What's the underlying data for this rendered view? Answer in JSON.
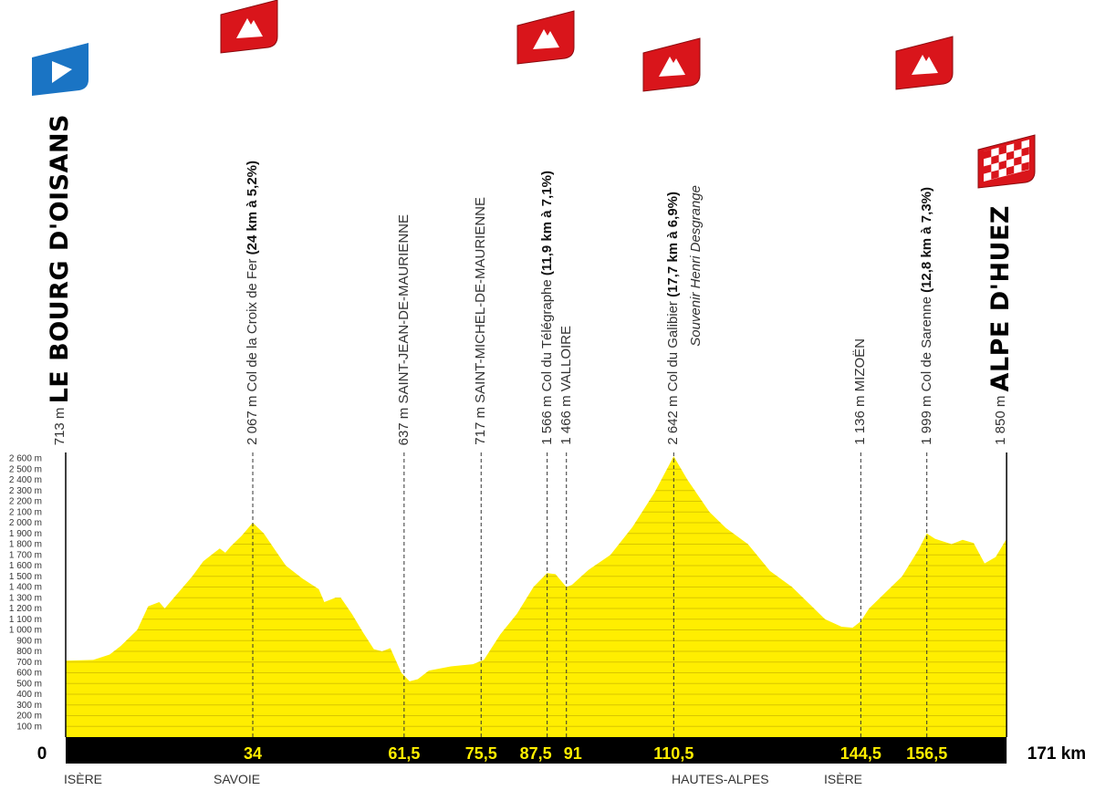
{
  "colors": {
    "profile_fill": "#ffee00",
    "profile_stripe": "#d9c600",
    "axis_bar": "#000000",
    "km_label": "#ffee00",
    "climb_flag": "#d9151b",
    "start_flag": "#1a74c4"
  },
  "waypoints": [
    {
      "km": 0,
      "elevation": "713 m",
      "name": "LE BOURG D'OISANS",
      "flag": "start-flag",
      "style": "town"
    },
    {
      "km": 34,
      "km_label": "34",
      "elevation": "2 067 m",
      "name": "Col de la Croix de Fer",
      "detail": "(24 km à 5,2%)",
      "flag": "mountain-flag",
      "style": "climb"
    },
    {
      "km": 61.5,
      "km_label": "61,5",
      "elevation": "637 m",
      "name": "SAINT-JEAN-DE-MAURIENNE",
      "style": "place"
    },
    {
      "km": 75.5,
      "km_label": "75,5",
      "elevation": "717 m",
      "name": "SAINT-MICHEL-DE-MAURIENNE",
      "style": "place"
    },
    {
      "km": 87.5,
      "km_label": "87,5",
      "elevation": "1 566 m",
      "name": "Col du Télégraphe",
      "detail": "(11,9 km à 7,1%)",
      "flag": "mountain-flag",
      "style": "climb"
    },
    {
      "km": 91,
      "km_label": "91",
      "elevation": "1 466 m",
      "name": "VALLOIRE",
      "style": "place"
    },
    {
      "km": 110.5,
      "km_label": "110,5",
      "elevation": "2 642 m",
      "name": "Col du Galibier",
      "detail": "(17,7 km à 6,9%)",
      "subtitle": "Souvenir Henri Desgrange",
      "flag": "mountain-flag",
      "style": "climb"
    },
    {
      "km": 144.5,
      "km_label": "144,5",
      "elevation": "1 136 m",
      "name": "MIZOËN",
      "style": "place"
    },
    {
      "km": 156.5,
      "km_label": "156,5",
      "elevation": "1 999 m",
      "name": "Col de Sarenne",
      "detail": "(12,8 km à 7,3%)",
      "flag": "mountain-flag",
      "style": "climb"
    },
    {
      "km": 171,
      "elevation": "1 850 m",
      "name": "ALPE D'HUEZ",
      "flag": "finish-flag",
      "style": "town"
    }
  ],
  "axis": {
    "start_label": "0",
    "end_label": "171 km"
  },
  "regions": [
    {
      "label": "ISÈRE"
    },
    {
      "label": "SAVOIE"
    },
    {
      "label": "HAUTES-ALPES"
    },
    {
      "label": "ISÈRE"
    }
  ],
  "chart_data": {
    "type": "area",
    "xlabel": "",
    "ylabel": "",
    "xlim": [
      0,
      171
    ],
    "ylim": [
      0,
      2600
    ],
    "y_ticks": [
      100,
      200,
      300,
      400,
      500,
      600,
      700,
      800,
      900,
      1000,
      1100,
      1200,
      1300,
      1400,
      1500,
      1600,
      1700,
      1800,
      1900,
      2000,
      2100,
      2200,
      2300,
      2400,
      2500,
      2600
    ],
    "y_tick_labels": [
      "100 m",
      "200 m",
      "300 m",
      "400 m",
      "500 m",
      "600 m",
      "700 m",
      "800 m",
      "900 m",
      "1 000 m",
      "1 100 m",
      "1 200 m",
      "1 300 m",
      "1 400 m",
      "1 500 m",
      "1 600 m",
      "1 700 m",
      "1 800 m",
      "1 900 m",
      "2 000 m",
      "2 100 m",
      "2 200 m",
      "2 300 m",
      "2 400 m",
      "2 500 m",
      "2 600 m"
    ],
    "grid": true,
    "profile": [
      [
        0,
        713
      ],
      [
        5,
        720
      ],
      [
        8,
        770
      ],
      [
        10,
        850
      ],
      [
        13,
        1000
      ],
      [
        15,
        1220
      ],
      [
        17,
        1260
      ],
      [
        18,
        1200
      ],
      [
        20,
        1320
      ],
      [
        23,
        1500
      ],
      [
        25,
        1640
      ],
      [
        27,
        1720
      ],
      [
        28,
        1760
      ],
      [
        29,
        1720
      ],
      [
        30,
        1780
      ],
      [
        32,
        1880
      ],
      [
        34,
        2000
      ],
      [
        36,
        1900
      ],
      [
        38,
        1750
      ],
      [
        40,
        1600
      ],
      [
        43,
        1480
      ],
      [
        46,
        1380
      ],
      [
        47,
        1260
      ],
      [
        49,
        1300
      ],
      [
        50,
        1300
      ],
      [
        52,
        1150
      ],
      [
        54,
        980
      ],
      [
        56,
        820
      ],
      [
        57.5,
        800
      ],
      [
        59,
        830
      ],
      [
        61,
        600
      ],
      [
        62.5,
        520
      ],
      [
        64,
        540
      ],
      [
        66,
        620
      ],
      [
        70,
        660
      ],
      [
        74,
        680
      ],
      [
        76,
        720
      ],
      [
        79,
        960
      ],
      [
        82,
        1150
      ],
      [
        85,
        1400
      ],
      [
        87.5,
        1530
      ],
      [
        89,
        1520
      ],
      [
        91,
        1400
      ],
      [
        92,
        1420
      ],
      [
        95,
        1560
      ],
      [
        99,
        1700
      ],
      [
        103,
        1960
      ],
      [
        107,
        2280
      ],
      [
        110.5,
        2620
      ],
      [
        113,
        2400
      ],
      [
        117,
        2100
      ],
      [
        120,
        1950
      ],
      [
        124,
        1800
      ],
      [
        128,
        1550
      ],
      [
        132,
        1400
      ],
      [
        135,
        1250
      ],
      [
        138,
        1100
      ],
      [
        141,
        1030
      ],
      [
        143,
        1020
      ],
      [
        144.5,
        1080
      ],
      [
        146,
        1200
      ],
      [
        149,
        1350
      ],
      [
        152,
        1500
      ],
      [
        155,
        1750
      ],
      [
        156.5,
        1900
      ],
      [
        158,
        1850
      ],
      [
        161,
        1800
      ],
      [
        163,
        1840
      ],
      [
        165,
        1810
      ],
      [
        167,
        1620
      ],
      [
        169,
        1680
      ],
      [
        171,
        1850
      ]
    ]
  }
}
